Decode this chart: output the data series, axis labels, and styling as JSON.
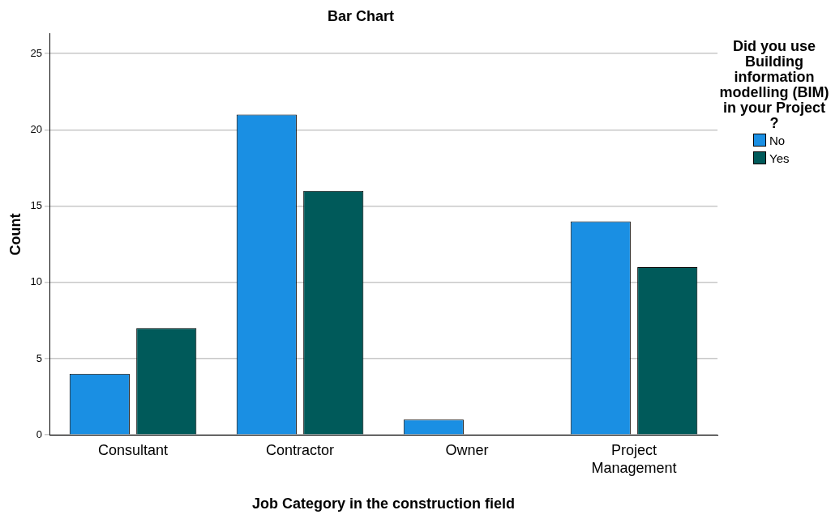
{
  "chart_data": {
    "type": "bar",
    "title": "Bar Chart",
    "xlabel": "Job Category in the construction field",
    "ylabel": "Count",
    "legend_title": "Did you use Building information modelling (BIM) in your Project ?",
    "categories": [
      "Consultant",
      "Contractor",
      "Owner",
      "Project Management"
    ],
    "series": [
      {
        "name": "No",
        "color": "#1a8fe3",
        "values": [
          4,
          21,
          1,
          14
        ]
      },
      {
        "name": "Yes",
        "color": "#005a5a",
        "values": [
          7,
          16,
          0,
          11
        ]
      }
    ],
    "ylim": [
      0,
      26.3
    ],
    "yticks": [
      0,
      5,
      10,
      15,
      20,
      25
    ],
    "grid": "y",
    "legend": "top right"
  }
}
